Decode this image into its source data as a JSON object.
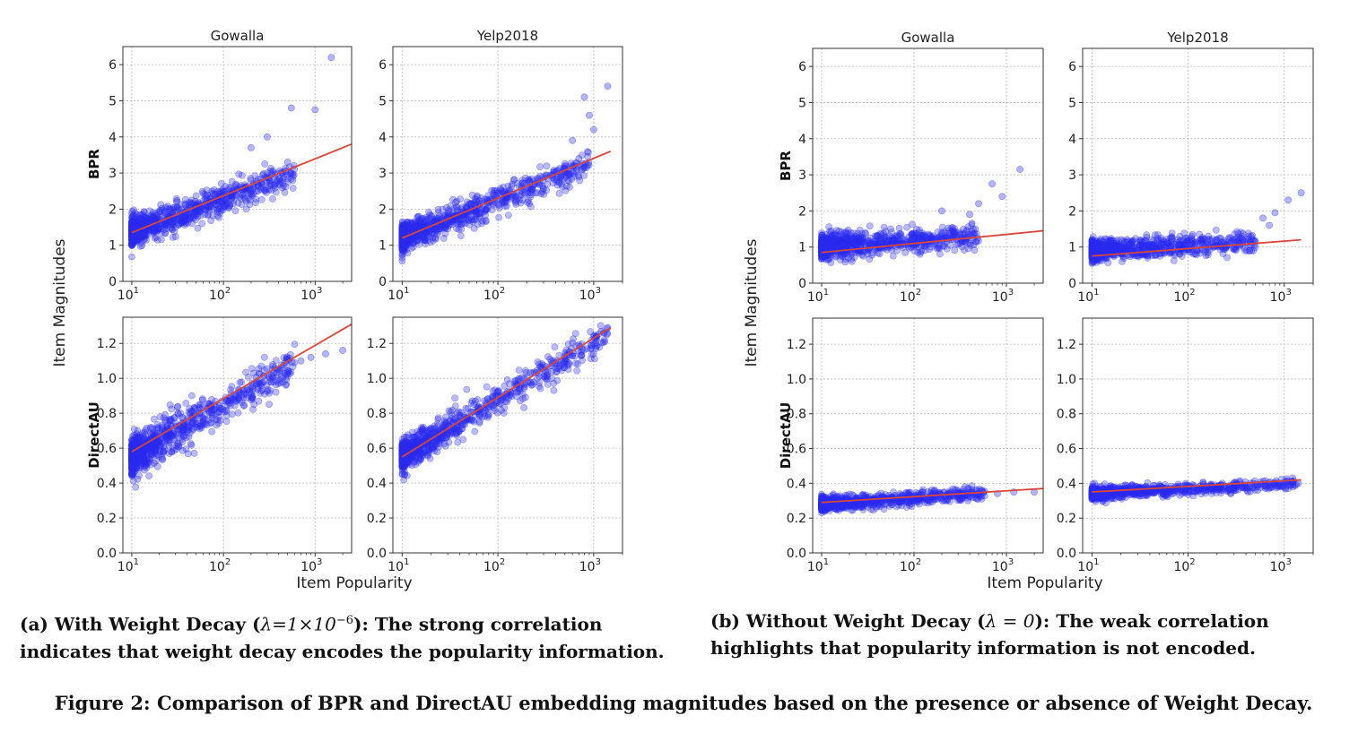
{
  "figure": {
    "caption": "Figure 2: Comparison of BPR and DirectAU embedding magnitudes based on the presence or absence of Weight Decay.",
    "point_color": "#2b2bf0",
    "fit_color": "#d9473a"
  },
  "groups": [
    {
      "id": "a",
      "caption_lead": "(a) With Weight Decay (",
      "caption_lambda": "λ=1×10",
      "caption_exp": "−6",
      "caption_tail": "): The strong correlation indicates that weight decay encodes the popularity information.",
      "xlabel": "Item Popularity",
      "ylabel": "Item Magnitudes"
    },
    {
      "id": "b",
      "caption_lead": "(b) Without Weight Decay (",
      "caption_lambda": "λ = 0",
      "caption_exp": "",
      "caption_tail": "): The weak correlation highlights that popularity information is not encoded.",
      "xlabel": "Item Popularity",
      "ylabel": "Item Magnitudes"
    }
  ],
  "chart_data": [
    {
      "group": "a",
      "row": "BPR",
      "column": "Gowalla",
      "type": "scatter",
      "xscale": "log",
      "xlim": [
        8,
        2500
      ],
      "ylim": [
        0,
        6.5
      ],
      "yticks": [
        0,
        1,
        2,
        3,
        4,
        5,
        6
      ],
      "ytick_labels": [
        "0",
        "1",
        "2",
        "3",
        "4",
        "5",
        "6"
      ],
      "xticks": [
        10,
        100,
        1000
      ],
      "fit": {
        "x": [
          10,
          2500
        ],
        "y": [
          1.35,
          3.8
        ]
      },
      "cloud": {
        "x_min": 10,
        "x_max": 600,
        "y_center_at_min": 1.35,
        "y_center_at_max": 3.0,
        "spread": 0.35
      },
      "outliers": [
        [
          1500,
          6.2
        ],
        [
          1000,
          4.75
        ],
        [
          550,
          4.8
        ],
        [
          300,
          4.0
        ],
        [
          500,
          3.3
        ],
        [
          200,
          3.7
        ]
      ],
      "grid": true
    },
    {
      "group": "a",
      "row": "BPR",
      "column": "Yelp2018",
      "type": "scatter",
      "xscale": "log",
      "xlim": [
        8,
        2000
      ],
      "ylim": [
        0,
        6.5
      ],
      "yticks": [
        0,
        1,
        2,
        3,
        4,
        5,
        6
      ],
      "ytick_labels": [
        "0",
        "1",
        "2",
        "3",
        "4",
        "5",
        "6"
      ],
      "xticks": [
        10,
        100,
        1000
      ],
      "fit": {
        "x": [
          10,
          1500
        ],
        "y": [
          1.2,
          3.6
        ]
      },
      "cloud": {
        "x_min": 10,
        "x_max": 900,
        "y_center_at_min": 1.2,
        "y_center_at_max": 3.2,
        "spread": 0.35
      },
      "outliers": [
        [
          1400,
          5.4
        ],
        [
          800,
          5.1
        ],
        [
          900,
          4.6
        ],
        [
          1000,
          4.2
        ],
        [
          600,
          3.9
        ],
        [
          700,
          3.4
        ]
      ],
      "grid": true
    },
    {
      "group": "a",
      "row": "DirectAU",
      "column": "Gowalla",
      "type": "scatter",
      "xscale": "log",
      "xlim": [
        8,
        2500
      ],
      "ylim": [
        0,
        1.35
      ],
      "yticks": [
        0,
        0.2,
        0.4,
        0.6,
        0.8,
        1.0,
        1.2
      ],
      "ytick_labels": [
        "0.0",
        "0.2",
        "0.4",
        "0.6",
        "0.8",
        "1.0",
        "1.2"
      ],
      "xticks": [
        10,
        100,
        1000
      ],
      "fit": {
        "x": [
          10,
          2500
        ],
        "y": [
          0.58,
          1.31
        ]
      },
      "cloud": {
        "x_min": 10,
        "x_max": 600,
        "y_center_at_min": 0.55,
        "y_center_at_max": 1.08,
        "spread": 0.1
      },
      "outliers": [
        [
          2000,
          1.16
        ],
        [
          1300,
          1.14
        ],
        [
          900,
          1.12
        ],
        [
          700,
          1.1
        ]
      ],
      "grid": true
    },
    {
      "group": "a",
      "row": "DirectAU",
      "column": "Yelp2018",
      "type": "scatter",
      "xscale": "log",
      "xlim": [
        8,
        2000
      ],
      "ylim": [
        0,
        1.35
      ],
      "yticks": [
        0,
        0.2,
        0.4,
        0.6,
        0.8,
        1.0,
        1.2
      ],
      "ytick_labels": [
        "0.0",
        "0.2",
        "0.4",
        "0.6",
        "0.8",
        "1.0",
        "1.2"
      ],
      "xticks": [
        10,
        100,
        1000
      ],
      "fit": {
        "x": [
          10,
          1500
        ],
        "y": [
          0.55,
          1.29
        ]
      },
      "cloud": {
        "x_min": 10,
        "x_max": 1400,
        "y_center_at_min": 0.55,
        "y_center_at_max": 1.25,
        "spread": 0.08
      },
      "outliers": [
        [
          1400,
          1.29
        ],
        [
          1200,
          1.27
        ],
        [
          1000,
          1.24
        ]
      ],
      "grid": true
    },
    {
      "group": "b",
      "row": "BPR",
      "column": "Gowalla",
      "type": "scatter",
      "xscale": "log",
      "xlim": [
        8,
        2500
      ],
      "ylim": [
        0,
        6.5
      ],
      "yticks": [
        0,
        1,
        2,
        3,
        4,
        5,
        6
      ],
      "ytick_labels": [
        "0",
        "1",
        "2",
        "3",
        "4",
        "5",
        "6"
      ],
      "xticks": [
        10,
        100,
        1000
      ],
      "fit": {
        "x": [
          10,
          2500
        ],
        "y": [
          0.85,
          1.45
        ]
      },
      "cloud": {
        "x_min": 10,
        "x_max": 500,
        "y_center_at_min": 1.0,
        "y_center_at_max": 1.3,
        "spread": 0.3
      },
      "outliers": [
        [
          1400,
          3.15
        ],
        [
          700,
          2.75
        ],
        [
          900,
          2.4
        ],
        [
          500,
          2.2
        ],
        [
          200,
          2.0
        ],
        [
          400,
          1.9
        ]
      ],
      "grid": true
    },
    {
      "group": "b",
      "row": "BPR",
      "column": "Yelp2018",
      "type": "scatter",
      "xscale": "log",
      "xlim": [
        8,
        2000
      ],
      "ylim": [
        0,
        6.5
      ],
      "yticks": [
        0,
        1,
        2,
        3,
        4,
        5,
        6
      ],
      "ytick_labels": [
        "0",
        "1",
        "2",
        "3",
        "4",
        "5",
        "6"
      ],
      "xticks": [
        10,
        100,
        1000
      ],
      "fit": {
        "x": [
          10,
          1500
        ],
        "y": [
          0.75,
          1.2
        ]
      },
      "cloud": {
        "x_min": 10,
        "x_max": 500,
        "y_center_at_min": 0.9,
        "y_center_at_max": 1.15,
        "spread": 0.25
      },
      "outliers": [
        [
          1500,
          2.5
        ],
        [
          1100,
          2.3
        ],
        [
          800,
          1.95
        ],
        [
          600,
          1.8
        ],
        [
          700,
          1.6
        ]
      ],
      "grid": true
    },
    {
      "group": "b",
      "row": "DirectAU",
      "column": "Gowalla",
      "type": "scatter",
      "xscale": "log",
      "xlim": [
        8,
        2500
      ],
      "ylim": [
        0,
        1.35
      ],
      "yticks": [
        0,
        0.2,
        0.4,
        0.6,
        0.8,
        1.0,
        1.2
      ],
      "ytick_labels": [
        "0.0",
        "0.2",
        "0.4",
        "0.6",
        "0.8",
        "1.0",
        "1.2"
      ],
      "xticks": [
        10,
        100,
        1000
      ],
      "fit": {
        "x": [
          10,
          2500
        ],
        "y": [
          0.29,
          0.37
        ]
      },
      "cloud": {
        "x_min": 10,
        "x_max": 600,
        "y_center_at_min": 0.28,
        "y_center_at_max": 0.34,
        "spread": 0.035
      },
      "outliers": [
        [
          2000,
          0.35
        ],
        [
          1200,
          0.35
        ],
        [
          800,
          0.34
        ]
      ],
      "grid": true
    },
    {
      "group": "b",
      "row": "DirectAU",
      "column": "Yelp2018",
      "type": "scatter",
      "xscale": "log",
      "xlim": [
        8,
        2000
      ],
      "ylim": [
        0,
        1.35
      ],
      "yticks": [
        0,
        0.2,
        0.4,
        0.6,
        0.8,
        1.0,
        1.2
      ],
      "ytick_labels": [
        "0.0",
        "0.2",
        "0.4",
        "0.6",
        "0.8",
        "1.0",
        "1.2"
      ],
      "xticks": [
        10,
        100,
        1000
      ],
      "fit": {
        "x": [
          10,
          1500
        ],
        "y": [
          0.35,
          0.42
        ]
      },
      "cloud": {
        "x_min": 10,
        "x_max": 1400,
        "y_center_at_min": 0.34,
        "y_center_at_max": 0.4,
        "spread": 0.03
      },
      "outliers": [
        [
          1400,
          0.4
        ],
        [
          1100,
          0.39
        ]
      ],
      "grid": true
    }
  ]
}
